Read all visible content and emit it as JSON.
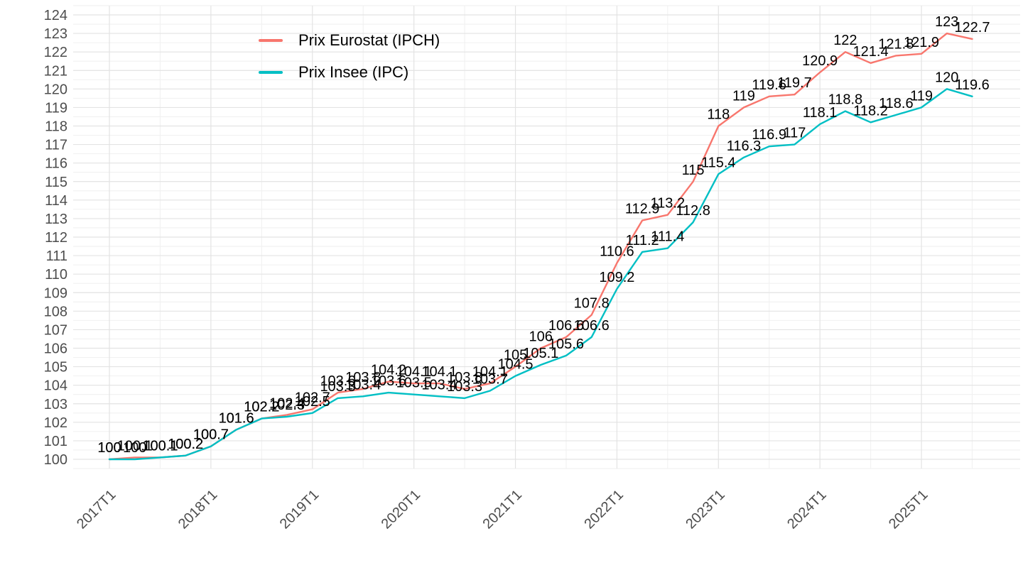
{
  "chart_data": {
    "type": "line",
    "x": [
      "2017T1",
      "2017T2",
      "2017T3",
      "2017T4",
      "2018T1",
      "2018T2",
      "2018T3",
      "2018T4",
      "2019T1",
      "2019T2",
      "2019T3",
      "2019T4",
      "2020T1",
      "2020T2",
      "2020T3",
      "2020T4",
      "2021T1",
      "2021T2",
      "2021T3",
      "2021T4",
      "2022T1",
      "2022T2",
      "2022T3",
      "2022T4",
      "2023T1",
      "2023T2",
      "2023T3",
      "2023T4",
      "2024T1",
      "2024T2",
      "2024T3",
      "2024T4",
      "2025T1",
      "2025T2",
      "2025T3"
    ],
    "series": [
      {
        "name": "Prix Eurostat (IPCH)",
        "color": "#F8766D",
        "values": [
          100,
          100.1,
          100.1,
          100.2,
          100.7,
          101.6,
          102.2,
          102.4,
          102.7,
          103.6,
          103.8,
          104.2,
          104.1,
          104.1,
          103.8,
          104.1,
          105,
          106,
          106.6,
          107.8,
          110.6,
          112.9,
          113.2,
          115,
          118,
          119,
          119.6,
          119.7,
          120.9,
          122,
          121.4,
          121.8,
          121.9,
          123,
          122.7
        ]
      },
      {
        "name": "Prix Insee (IPC)",
        "color": "#00BFC4",
        "values": [
          100,
          100,
          100.1,
          100.2,
          100.7,
          101.6,
          102.2,
          102.3,
          102.5,
          103.3,
          103.4,
          103.6,
          103.5,
          103.4,
          103.3,
          103.7,
          104.5,
          105.1,
          105.6,
          106.6,
          109.2,
          111.2,
          111.4,
          112.8,
          115.4,
          116.3,
          116.9,
          117,
          118.1,
          118.8,
          118.2,
          118.6,
          119,
          120,
          119.6
        ]
      }
    ],
    "title": "",
    "xlabel": "",
    "ylabel": "",
    "ylim": [
      100,
      124
    ],
    "y_tick_step": 1,
    "x_tick_labels": [
      "2017T1",
      "2018T1",
      "2019T1",
      "2020T1",
      "2021T1",
      "2022T1",
      "2023T1",
      "2024T1",
      "2025T1"
    ],
    "grid": true,
    "legend_position": "top-left-inset",
    "point_labels": true,
    "colors": {
      "axis_text": "#4d4d4d",
      "point_label_text": "#000000",
      "grid_major": "#e3e3e3",
      "grid_minor": "#f1f1f1",
      "background": "#ffffff"
    }
  }
}
